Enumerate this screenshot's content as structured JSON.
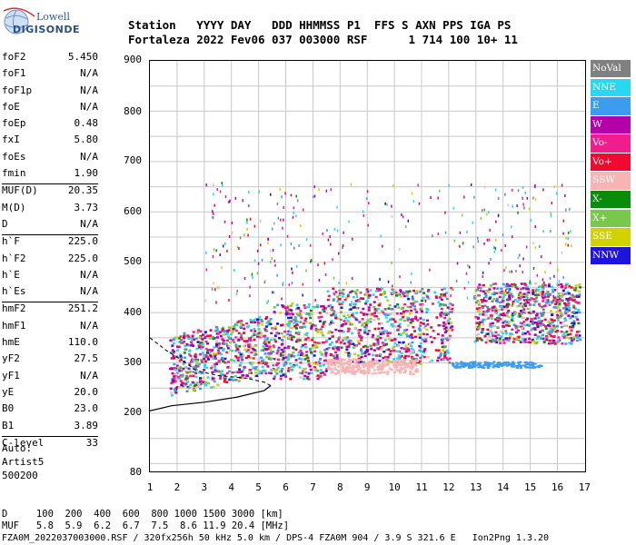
{
  "logo": {
    "line1": "Lowell",
    "line2": "DIGISONDE"
  },
  "header": {
    "line1": "Station   YYYY DAY   DDD HHMMSS P1  FFS S AXN PPS IGA PS",
    "line2": "Fortaleza 2022 Fev06 037 003000 RSF      1 714 100 10+ 11"
  },
  "params": [
    [
      [
        "foF2",
        "5.450"
      ],
      [
        "foF1",
        "N/A"
      ],
      [
        "foF1p",
        "N/A"
      ],
      [
        "foE",
        "N/A"
      ],
      [
        "foEp",
        "0.48"
      ],
      [
        "fxI",
        "5.80"
      ],
      [
        "foEs",
        "N/A"
      ],
      [
        "fmin",
        "1.90"
      ]
    ],
    [
      [
        "MUF(D)",
        "20.35"
      ],
      [
        "M(D)",
        "3.73"
      ],
      [
        "D",
        "N/A"
      ]
    ],
    [
      [
        "h`F",
        "225.0"
      ],
      [
        "h`F2",
        "225.0"
      ],
      [
        "h`E",
        "N/A"
      ],
      [
        "h`Es",
        "N/A"
      ]
    ],
    [
      [
        "hmF2",
        "251.2"
      ],
      [
        "hmF1",
        "N/A"
      ],
      [
        "hmE",
        "110.0"
      ],
      [
        "yF2",
        "27.5"
      ],
      [
        "yF1",
        "N/A"
      ],
      [
        "yE",
        "20.0"
      ],
      [
        "B0",
        "23.0"
      ],
      [
        "B1",
        "3.89"
      ]
    ],
    [
      [
        "C-level",
        "33"
      ]
    ]
  ],
  "autoscale": {
    "line1": "Auto:",
    "line2": "Artist5",
    "line3": "500200"
  },
  "axes": {
    "y_ticks": [
      "900",
      "800",
      "700",
      "600",
      "500",
      "400",
      "300",
      "200",
      "80"
    ],
    "x_ticks": [
      "1",
      "2",
      "3",
      "4",
      "5",
      "6",
      "7",
      "8",
      "9",
      "10",
      "11",
      "12",
      "13",
      "14",
      "15",
      "16",
      "17"
    ]
  },
  "legend": [
    {
      "label": "NoVal",
      "color": "#808080"
    },
    {
      "label": "NNE",
      "color": "#28d7f0"
    },
    {
      "label": "E",
      "color": "#3c9cf0"
    },
    {
      "label": "W",
      "color": "#b400a8"
    },
    {
      "label": "Vo-",
      "color": "#f01e8c"
    },
    {
      "label": "Vo+",
      "color": "#f00a32"
    },
    {
      "label": "SSW",
      "color": "#f8b4b4"
    },
    {
      "label": "X-",
      "color": "#0a8c0a"
    },
    {
      "label": "X+",
      "color": "#78c84b"
    },
    {
      "label": "SSE",
      "color": "#d2d200"
    },
    {
      "label": "NNW",
      "color": "#1e14dc"
    }
  ],
  "footer": {
    "line1": "D     100  200  400  600  800 1000 1500 3000 [km]",
    "line2": "MUF   5.8  5.9  6.2  6.7  7.5  8.6 11.9 20.4 [MHz]",
    "line3": "FZA0M_2022037003000.RSF / 320fx256h 50 kHz 5.0 km / DPS-4 FZA0M 904 / 3.9 S 321.6 E   Ion2Png 1.3.20"
  }
}
